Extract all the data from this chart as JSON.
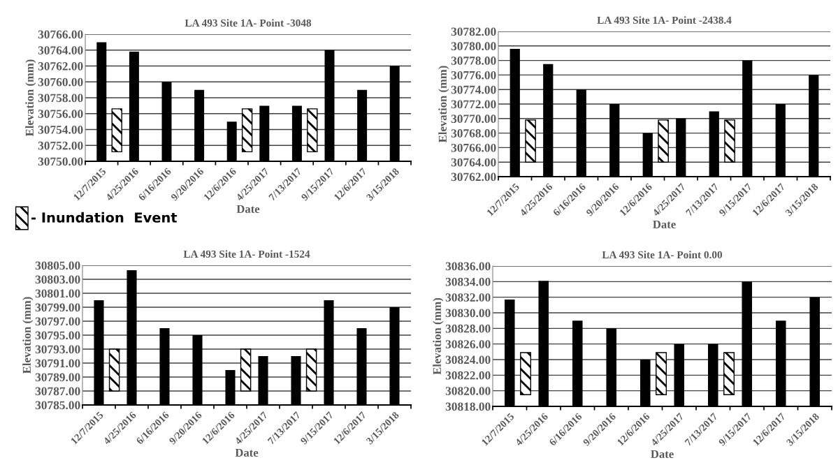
{
  "chart_data": [
    {
      "type": "bar",
      "title": "LA 493 Site 1A- Point -3048",
      "xlabel": "Date",
      "ylabel": "Elevation (mm)",
      "categories": [
        "12/7/2015",
        "4/25/2016",
        "6/16/2016",
        "9/20/2016",
        "12/6/2016",
        "4/25/2017",
        "7/13/2017",
        "9/15/2017",
        "12/6/2017",
        "3/15/2018"
      ],
      "series": [
        {
          "color": "#000000",
          "values": [
            30765,
            30763.8,
            30760,
            30759,
            30755,
            30757,
            30757,
            30764,
            30759,
            30762
          ]
        },
        {
          "name": "- Inundation  Event",
          "color": "#000000",
          "values": [
            5.4,
            null,
            null,
            null,
            5.4,
            null,
            5.4,
            null,
            null,
            null
          ],
          "base": [
            30751.2,
            null,
            null,
            null,
            30751.2,
            null,
            30751.2,
            null,
            null,
            null
          ]
        }
      ],
      "ylim": [
        30750,
        30766
      ],
      "yticks": [
        {
          "value": 30750,
          "label": "30750.00"
        },
        {
          "value": 30752,
          "label": "30752.00"
        },
        {
          "value": 30754,
          "label": "30754.00"
        },
        {
          "value": 30756,
          "label": "30756.00"
        },
        {
          "value": 30758,
          "label": "30758.00"
        },
        {
          "value": 30760,
          "label": "30760.00"
        },
        {
          "value": 30762,
          "label": "30762.00"
        },
        {
          "value": 30764,
          "label": "30764.00"
        },
        {
          "value": 30766,
          "label": "30766.00"
        }
      ],
      "grid": "y",
      "legend": "bottom left"
    },
    {
      "type": "bar",
      "title": "LA 493 Site 1A- Point -2438.4",
      "xlabel": "Date",
      "ylabel": "Elevation (mm)",
      "categories": [
        "12/7/2015",
        "4/25/2016",
        "6/16/2016",
        "9/20/2016",
        "12/6/2016",
        "4/25/2017",
        "7/13/2017",
        "9/15/2017",
        "12/6/2017",
        "3/15/2018"
      ],
      "series": [
        {
          "color": "#000000",
          "values": [
            30779.6,
            30777.5,
            30774,
            30772,
            30768,
            30770,
            30771,
            30778,
            30772,
            30776
          ]
        },
        {
          "color": "#000000",
          "values": [
            5.8,
            null,
            null,
            null,
            5.8,
            null,
            5.8,
            null,
            null,
            null
          ],
          "base": [
            30764,
            null,
            null,
            null,
            30764,
            null,
            30764,
            null,
            null,
            null
          ]
        }
      ],
      "ylim": [
        30762,
        30782
      ],
      "yticks": [
        {
          "value": 30762,
          "label": "30762.00"
        },
        {
          "value": 30764,
          "label": "30764.00"
        },
        {
          "value": 30766,
          "label": "30766.00"
        },
        {
          "value": 30768,
          "label": "30768.00"
        },
        {
          "value": 30770,
          "label": "30770.00"
        },
        {
          "value": 30772,
          "label": "30772.00"
        },
        {
          "value": 30774,
          "label": "30774.00"
        },
        {
          "value": 30776,
          "label": "30776.00"
        },
        {
          "value": 30778,
          "label": "30778.00"
        },
        {
          "value": 30780,
          "label": "30780.00"
        },
        {
          "value": 30782,
          "label": "30782.00"
        }
      ],
      "grid": "y"
    },
    {
      "type": "bar",
      "title": "LA 493 Site 1A- Point -1524",
      "xlabel": "Date",
      "ylabel": "Elevation (mm)",
      "categories": [
        "12/7/2015",
        "4/25/2016",
        "6/16/2016",
        "9/20/2016",
        "12/6/2016",
        "4/25/2017",
        "7/13/2017",
        "9/15/2017",
        "12/6/2017",
        "3/15/2018"
      ],
      "series": [
        {
          "color": "#000000",
          "values": [
            30800,
            30804.3,
            30796,
            30795,
            30790,
            30792,
            30792,
            30800,
            30796,
            30799
          ]
        },
        {
          "color": "#000000",
          "values": [
            6,
            null,
            null,
            null,
            6,
            null,
            6,
            null,
            null,
            null
          ],
          "base": [
            30787,
            null,
            null,
            null,
            30787,
            null,
            30787,
            null,
            null,
            null
          ]
        }
      ],
      "ylim": [
        30785,
        30805
      ],
      "yticks": [
        {
          "value": 30785,
          "label": "30785.00"
        },
        {
          "value": 30787,
          "label": "30787.00"
        },
        {
          "value": 30789,
          "label": "30789.00"
        },
        {
          "value": 30791,
          "label": "30791.00"
        },
        {
          "value": 30793,
          "label": "30793.00"
        },
        {
          "value": 30795,
          "label": "30795.00"
        },
        {
          "value": 30797,
          "label": "30797.00"
        },
        {
          "value": 30799,
          "label": "30799.00"
        },
        {
          "value": 30801,
          "label": "30801.00"
        },
        {
          "value": 30803,
          "label": "30803.00"
        },
        {
          "value": 30805,
          "label": "30805.00"
        }
      ],
      "grid": "y"
    },
    {
      "type": "bar",
      "title": "LA 493 Site 1A- Point 0.00",
      "xlabel": "Date",
      "ylabel": "Elevation (mm)",
      "categories": [
        "12/7/2015",
        "4/25/2016",
        "6/16/2016",
        "9/20/2016",
        "12/6/2016",
        "4/25/2017",
        "7/13/2017",
        "9/15/2017",
        "12/6/2017",
        "3/15/2018"
      ],
      "series": [
        {
          "color": "#000000",
          "values": [
            30831.7,
            30834.1,
            30829,
            30828,
            30824,
            30826,
            30826,
            30834,
            30829,
            30832
          ]
        },
        {
          "color": "#000000",
          "values": [
            5.4,
            null,
            null,
            null,
            5.4,
            null,
            5.4,
            null,
            null,
            null
          ],
          "base": [
            30819.5,
            null,
            null,
            null,
            30819.5,
            null,
            30819.5,
            null,
            null,
            null
          ]
        }
      ],
      "ylim": [
        30818,
        30836
      ],
      "yticks": [
        {
          "value": 30818,
          "label": "30818.00"
        },
        {
          "value": 30820,
          "label": "30820.00"
        },
        {
          "value": 30822,
          "label": "30822.00"
        },
        {
          "value": 30824,
          "label": "30824.00"
        },
        {
          "value": 30826,
          "label": "30826.00"
        },
        {
          "value": 30828,
          "label": "30828.00"
        },
        {
          "value": 30830,
          "label": "30830.00"
        },
        {
          "value": 30832,
          "label": "30832.00"
        },
        {
          "value": 30834,
          "label": "30834.00"
        },
        {
          "value": 30836,
          "label": "30836.00"
        }
      ],
      "grid": "y"
    }
  ]
}
